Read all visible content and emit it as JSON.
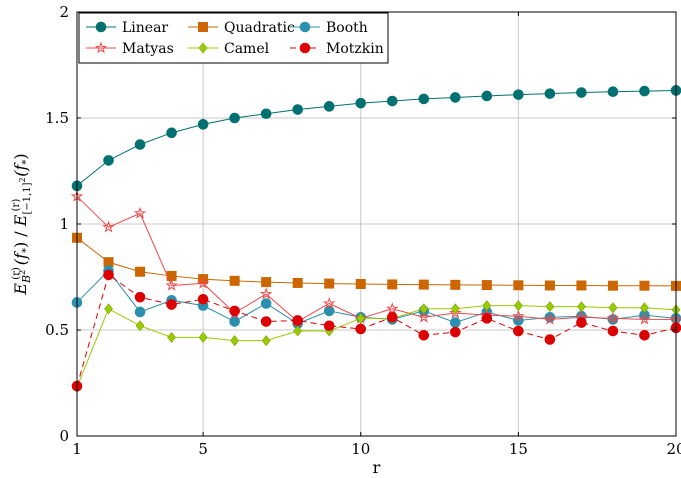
{
  "chart_data": {
    "type": "line",
    "x": [
      1,
      2,
      3,
      4,
      5,
      6,
      7,
      8,
      9,
      10,
      11,
      12,
      13,
      14,
      15,
      16,
      17,
      18,
      19,
      20
    ],
    "xlabel": "r",
    "ylabel": "E_{B^2}^{(r)}(f_*) / E_{[-1,1]^2}^{(r)}(f_*)",
    "ylabel_parts": {
      "num_main": "E",
      "num_sup": "(r)",
      "num_sub": "B",
      "num_sub_sup": "2",
      "num_arg": "(f",
      "num_arg_sub": "*",
      "num_close": ")",
      "slash": " / ",
      "den_main": "E",
      "den_sup": "(r)",
      "den_sub": "[−1,1]",
      "den_sub_sup": "2",
      "den_arg": "(f",
      "den_arg_sub": "*",
      "den_close": ")"
    },
    "xlim": [
      1,
      20
    ],
    "ylim": [
      0,
      2
    ],
    "xticks": [
      1,
      5,
      10,
      15,
      20
    ],
    "yticks": [
      0,
      0.5,
      1,
      1.5,
      2
    ],
    "xtick_labels": [
      "1",
      "5",
      "10",
      "15",
      "20"
    ],
    "ytick_labels": [
      "0",
      "0.5",
      "1",
      "1.5",
      "2"
    ],
    "grid": true,
    "legend_position": "top-left",
    "series": [
      {
        "name": "Linear",
        "color": "#007070",
        "marker": "circle",
        "dash": false,
        "values": [
          1.18,
          1.3,
          1.375,
          1.43,
          1.47,
          1.5,
          1.52,
          1.54,
          1.555,
          1.57,
          1.58,
          1.59,
          1.597,
          1.604,
          1.61,
          1.615,
          1.62,
          1.624,
          1.627,
          1.63
        ]
      },
      {
        "name": "Quadratic",
        "color": "#cc6600",
        "marker": "square",
        "dash": false,
        "values": [
          0.935,
          0.82,
          0.775,
          0.755,
          0.74,
          0.732,
          0.726,
          0.722,
          0.719,
          0.717,
          0.715,
          0.714,
          0.713,
          0.712,
          0.711,
          0.71,
          0.71,
          0.709,
          0.709,
          0.708
        ]
      },
      {
        "name": "Booth",
        "color": "#2b90b0",
        "marker": "circle",
        "dash": false,
        "values": [
          0.63,
          0.78,
          0.585,
          0.64,
          0.615,
          0.54,
          0.625,
          0.53,
          0.59,
          0.56,
          0.55,
          0.59,
          0.535,
          0.585,
          0.545,
          0.56,
          0.565,
          0.55,
          0.57,
          0.555
        ]
      },
      {
        "name": "Matyas",
        "color": "#f04848",
        "marker": "star",
        "dash": false,
        "values": [
          1.13,
          0.985,
          1.05,
          0.71,
          0.72,
          0.58,
          0.67,
          0.54,
          0.625,
          0.555,
          0.6,
          0.56,
          0.58,
          0.57,
          0.565,
          0.55,
          0.56,
          0.555,
          0.55,
          0.55
        ]
      },
      {
        "name": "Camel",
        "color": "#99cc00",
        "marker": "diamond",
        "dash": false,
        "values": [
          0.23,
          0.6,
          0.52,
          0.465,
          0.465,
          0.45,
          0.45,
          0.495,
          0.495,
          0.555,
          0.555,
          0.6,
          0.6,
          0.615,
          0.615,
          0.61,
          0.61,
          0.605,
          0.605,
          0.595
        ]
      },
      {
        "name": "Motzkin",
        "color": "#dd0000",
        "marker": "circle",
        "dash": true,
        "values": [
          0.235,
          0.76,
          0.655,
          0.62,
          0.645,
          0.59,
          0.54,
          0.545,
          0.52,
          0.505,
          0.56,
          0.475,
          0.49,
          0.555,
          0.495,
          0.455,
          0.535,
          0.495,
          0.475,
          0.51
        ]
      }
    ]
  }
}
